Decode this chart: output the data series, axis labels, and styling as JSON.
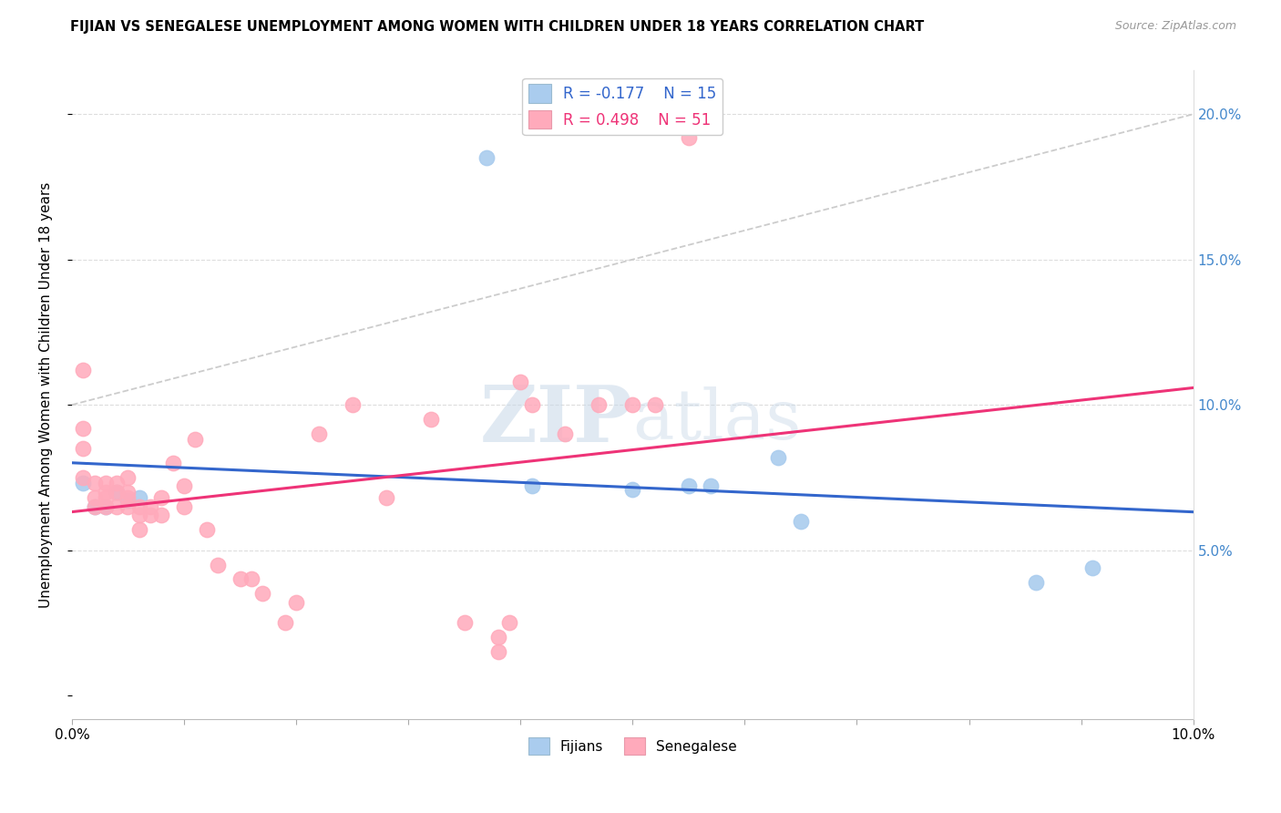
{
  "title": "FIJIAN VS SENEGALESE UNEMPLOYMENT AMONG WOMEN WITH CHILDREN UNDER 18 YEARS CORRELATION CHART",
  "source": "Source: ZipAtlas.com",
  "ylabel": "Unemployment Among Women with Children Under 18 years",
  "xlim": [
    0.0,
    0.1
  ],
  "ylim": [
    -0.008,
    0.215
  ],
  "yticks": [
    0.0,
    0.05,
    0.1,
    0.15,
    0.2
  ],
  "xticks": [
    0.0,
    0.01,
    0.02,
    0.03,
    0.04,
    0.05,
    0.06,
    0.07,
    0.08,
    0.09,
    0.1
  ],
  "fijian_color": "#aaccee",
  "senegalese_color": "#ffaabb",
  "fijian_line_color": "#3366cc",
  "senegalese_line_color": "#ee3377",
  "diagonal_color": "#cccccc",
  "legend_fijian_R": "-0.177",
  "legend_fijian_N": "15",
  "legend_senegalese_R": "0.498",
  "legend_senegalese_N": "51",
  "watermark_zip": "ZIP",
  "watermark_atlas": "atlas",
  "background_color": "#ffffff",
  "grid_color": "#dddddd",
  "fijian_x": [
    0.001,
    0.002,
    0.003,
    0.004,
    0.005,
    0.006,
    0.037,
    0.041,
    0.05,
    0.055,
    0.057,
    0.063,
    0.065,
    0.086,
    0.091
  ],
  "fijian_y": [
    0.073,
    0.065,
    0.065,
    0.07,
    0.067,
    0.068,
    0.185,
    0.072,
    0.071,
    0.072,
    0.072,
    0.082,
    0.06,
    0.039,
    0.044
  ],
  "senegalese_x": [
    0.001,
    0.001,
    0.001,
    0.001,
    0.002,
    0.002,
    0.002,
    0.003,
    0.003,
    0.003,
    0.003,
    0.004,
    0.004,
    0.004,
    0.005,
    0.005,
    0.005,
    0.005,
    0.006,
    0.006,
    0.006,
    0.007,
    0.007,
    0.008,
    0.008,
    0.009,
    0.01,
    0.01,
    0.011,
    0.012,
    0.013,
    0.015,
    0.016,
    0.017,
    0.019,
    0.02,
    0.022,
    0.025,
    0.028,
    0.032,
    0.035,
    0.038,
    0.038,
    0.039,
    0.04,
    0.041,
    0.044,
    0.047,
    0.05,
    0.052,
    0.055
  ],
  "senegalese_y": [
    0.075,
    0.085,
    0.092,
    0.112,
    0.065,
    0.068,
    0.073,
    0.065,
    0.068,
    0.07,
    0.073,
    0.065,
    0.07,
    0.073,
    0.065,
    0.068,
    0.07,
    0.075,
    0.057,
    0.062,
    0.065,
    0.062,
    0.065,
    0.062,
    0.068,
    0.08,
    0.065,
    0.072,
    0.088,
    0.057,
    0.045,
    0.04,
    0.04,
    0.035,
    0.025,
    0.032,
    0.09,
    0.1,
    0.068,
    0.095,
    0.025,
    0.015,
    0.02,
    0.025,
    0.108,
    0.1,
    0.09,
    0.1,
    0.1,
    0.1,
    0.192
  ]
}
